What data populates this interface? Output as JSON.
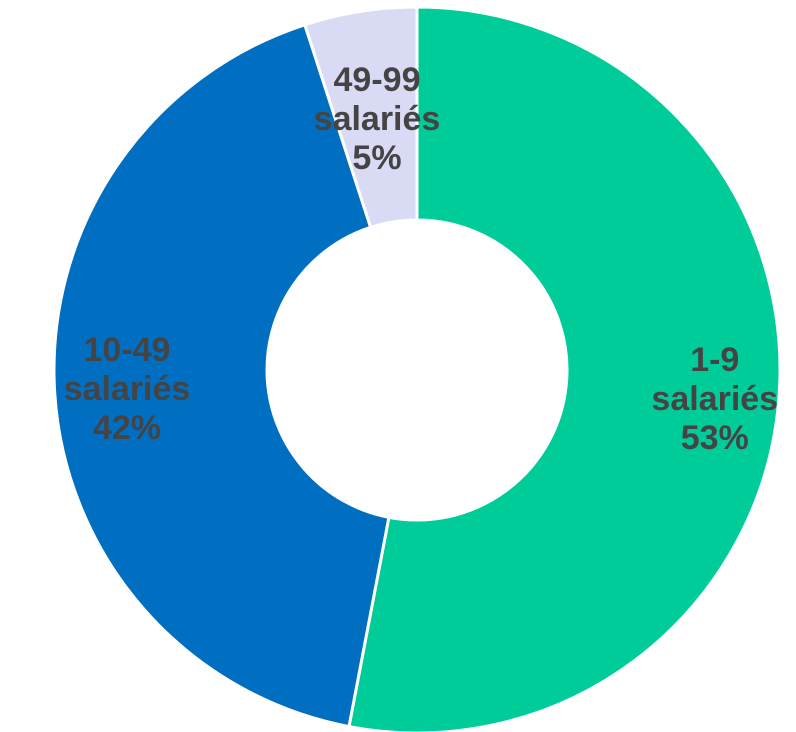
{
  "chart_data": {
    "type": "pie",
    "variant": "donut",
    "title": "",
    "start": "12 o'clock, clockwise",
    "slices": [
      {
        "name": "1-9",
        "label": [
          "1-9",
          "salariés",
          "53%"
        ],
        "value": 53,
        "color": "#00CC99"
      },
      {
        "name": "10-49",
        "label": [
          "10-49",
          "salariés",
          "42%"
        ],
        "value": 42,
        "color": "#006FC1"
      },
      {
        "name": "49-99",
        "label": [
          "49-99",
          "salariés",
          "5%"
        ],
        "value": 5,
        "color": "#D9DAF3"
      }
    ],
    "legend": "none (data labels on slices)"
  }
}
